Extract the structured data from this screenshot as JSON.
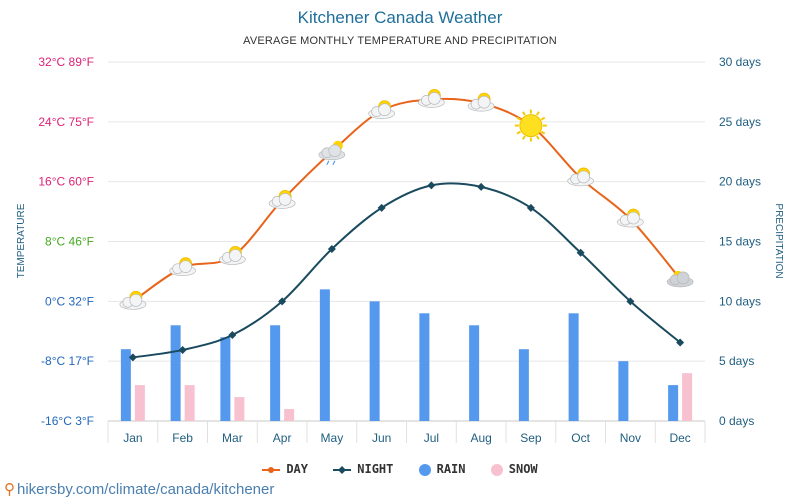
{
  "page": {
    "title": "Kitchener Canada Weather",
    "subtitle": "AVERAGE MONTHLY TEMPERATURE AND PRECIPITATION",
    "credit": "hikersby.com/climate/canada/kitchener"
  },
  "chart_data": {
    "type": "line+bar",
    "title": "Kitchener Canada Weather",
    "subtitle": "AVERAGE MONTHLY TEMPERATURE AND PRECIPITATION",
    "categories": [
      "Jan",
      "Feb",
      "Mar",
      "Apr",
      "May",
      "Jun",
      "Jul",
      "Aug",
      "Sep",
      "Oct",
      "Nov",
      "Dec"
    ],
    "y_left": {
      "label": "TEMPERATURE",
      "range_c": [
        -16,
        32
      ],
      "ticks": [
        {
          "c": -16,
          "text": "-16°C 3°F",
          "color": "#2266bb"
        },
        {
          "c": -8,
          "text": "-8°C 17°F",
          "color": "#2266bb"
        },
        {
          "c": 0,
          "text": "0°C 32°F",
          "color": "#2266bb"
        },
        {
          "c": 8,
          "text": "8°C 46°F",
          "color": "#44aa22"
        },
        {
          "c": 16,
          "text": "16°C 60°F",
          "color": "#dd2277"
        },
        {
          "c": 24,
          "text": "24°C 75°F",
          "color": "#dd2277"
        },
        {
          "c": 32,
          "text": "32°C 89°F",
          "color": "#dd2277"
        }
      ]
    },
    "y_right": {
      "label": "PRECIPITATION",
      "range": [
        0,
        30
      ],
      "ticks": [
        {
          "v": 0,
          "text": "0 days"
        },
        {
          "v": 5,
          "text": "5 days"
        },
        {
          "v": 10,
          "text": "10 days"
        },
        {
          "v": 15,
          "text": "15 days"
        },
        {
          "v": 20,
          "text": "20 days"
        },
        {
          "v": 25,
          "text": "25 days"
        },
        {
          "v": 30,
          "text": "30 days"
        }
      ]
    },
    "series": [
      {
        "name": "DAY",
        "type": "line",
        "color": "#e8641a",
        "values": [
          0,
          4.5,
          6,
          13.5,
          20,
          25.5,
          27,
          26.5,
          23.5,
          16.5,
          11,
          3
        ]
      },
      {
        "name": "NIGHT",
        "type": "line",
        "color": "#1a4a5e",
        "values": [
          -7.5,
          -6.5,
          -4.5,
          0,
          7,
          12.5,
          15.5,
          15.3,
          12.5,
          6.5,
          0,
          -5.5
        ]
      },
      {
        "name": "RAIN",
        "type": "bar",
        "color": "#5599ee",
        "values": [
          6,
          8,
          7,
          8,
          11,
          10,
          9,
          8,
          6,
          9,
          5,
          3
        ]
      },
      {
        "name": "SNOW",
        "type": "bar",
        "color": "#f7c1d0",
        "values": [
          3,
          3,
          2,
          1,
          0,
          0,
          0,
          0,
          0,
          0,
          0,
          4
        ]
      }
    ],
    "weather_icons": [
      "partly-cloudy",
      "partly-cloudy",
      "partly-cloudy",
      "partly-cloudy",
      "rain-cloud",
      "partly-cloudy",
      "partly-cloudy",
      "partly-cloudy",
      "sun",
      "partly-cloudy",
      "partly-cloudy",
      "snow-cloud"
    ],
    "grid": true,
    "legend_placement": "bottom-center"
  }
}
